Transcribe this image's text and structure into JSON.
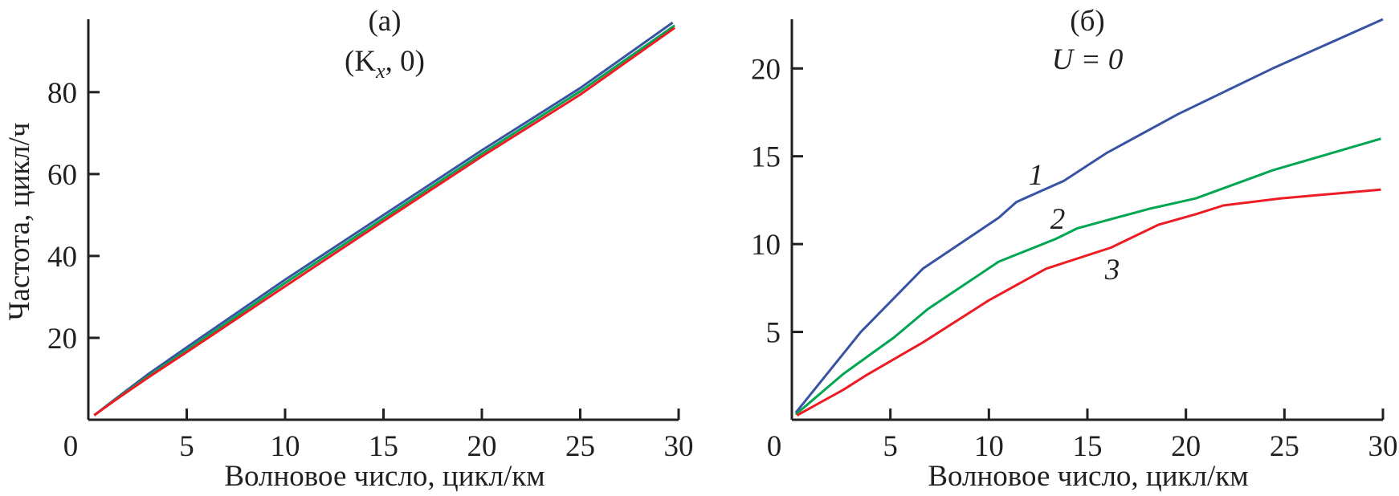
{
  "chart_data": [
    {
      "type": "line",
      "panel_label": "(a)",
      "title": "(K",
      "title_sub": "x",
      "title_rest": ", 0)",
      "xlabel": "Волновое число, цикл/км",
      "ylabel": "Частота, цикл/ч",
      "xlim": [
        0,
        30
      ],
      "ylim": [
        0,
        97.8
      ],
      "xticks": [
        0,
        5,
        10,
        15,
        20,
        25,
        30
      ],
      "yticks": [
        20,
        40,
        60,
        80
      ],
      "grid": false,
      "series": [
        {
          "color": "#3953a4",
          "x": [
            0.3,
            1.4,
            3,
            5,
            10,
            15,
            20,
            25,
            29.7
          ],
          "y": [
            1.1,
            5.2,
            11,
            17.7,
            34.2,
            50,
            65.8,
            81,
            97
          ]
        },
        {
          "color": "#00a651",
          "x": [
            0.3,
            1.4,
            3,
            5,
            10,
            15,
            20,
            25,
            29.8
          ],
          "y": [
            1.1,
            5.0,
            10.5,
            17.0,
            33.4,
            49.2,
            65.0,
            80.2,
            96.3
          ]
        },
        {
          "color": "#ed1c24",
          "x": [
            0.3,
            1.4,
            3,
            5,
            10,
            15,
            20,
            25,
            29.8
          ],
          "y": [
            1.1,
            4.9,
            10.2,
            16.5,
            32.6,
            48.5,
            64.3,
            79.4,
            95.7
          ]
        }
      ]
    },
    {
      "type": "line",
      "panel_label": "(б)",
      "title": "U = 0",
      "xlabel": "Волновое число, цикл/км",
      "ylabel": "",
      "xlim": [
        0,
        30
      ],
      "ylim": [
        0,
        22.8
      ],
      "xticks": [
        0,
        5,
        10,
        15,
        20,
        25,
        30
      ],
      "yticks": [
        5,
        10,
        15,
        20
      ],
      "grid": false,
      "series": [
        {
          "name": "1",
          "color": "#3953a4",
          "x": [
            0.2,
            3.5,
            6.65,
            10.5,
            11.4,
            13.8,
            16,
            19.6,
            24.4,
            30
          ],
          "y": [
            0.4,
            5.0,
            8.6,
            11.5,
            12.4,
            13.6,
            15.2,
            17.4,
            20.0,
            22.8
          ]
        },
        {
          "name": "2",
          "color": "#00a651",
          "x": [
            0.2,
            2.6,
            5.2,
            6.9,
            10.5,
            13.4,
            14.5,
            18.1,
            20.5,
            24.4,
            29.9
          ],
          "y": [
            0.3,
            2.6,
            4.7,
            6.3,
            9.0,
            10.3,
            10.9,
            12.0,
            12.6,
            14.2,
            16.0
          ]
        },
        {
          "name": "3",
          "color": "#ed1c24",
          "x": [
            0.26,
            2.6,
            3.8,
            6.65,
            10,
            12.9,
            16.2,
            18.6,
            20.5,
            21.9,
            24.8,
            29.9
          ],
          "y": [
            0.25,
            1.7,
            2.55,
            4.4,
            6.8,
            8.6,
            9.8,
            11.1,
            11.7,
            12.2,
            12.6,
            13.1
          ]
        }
      ]
    }
  ]
}
